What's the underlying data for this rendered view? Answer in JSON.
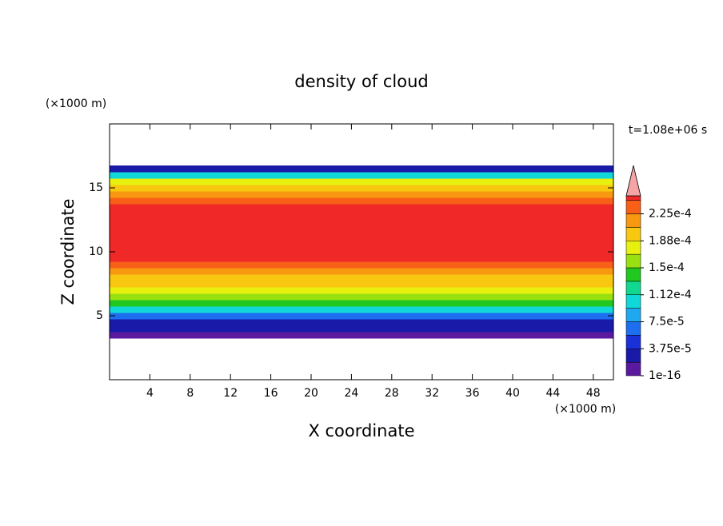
{
  "chart_data": {
    "type": "contour",
    "title": "density of cloud",
    "x_label": "X coordinate",
    "y_label": "Z coordinate",
    "x_units": "(×1000 m)",
    "y_units": "(×1000 m)",
    "time_label": "t=1.08e+06 s",
    "xlim": [
      0,
      50
    ],
    "xticks": [
      4,
      8,
      12,
      16,
      20,
      24,
      28,
      32,
      36,
      40,
      44,
      48
    ],
    "ylim": [
      0,
      20
    ],
    "yticks": [
      5,
      10,
      15
    ],
    "profile": {
      "z": [
        3.5,
        4.0,
        4.5,
        5.0,
        5.5,
        6.0,
        6.5,
        7.0,
        7.5,
        8.0,
        8.5,
        9.0,
        9.5,
        10.0,
        10.5,
        11.0,
        11.5,
        12.0,
        12.5,
        13.0,
        13.5,
        14.0,
        14.5,
        15.0,
        15.5,
        16.0,
        16.5
      ],
      "density": [
        1e-05,
        2e-05,
        3e-05,
        6e-05,
        0.00011,
        0.00014,
        0.00016,
        0.00018,
        0.00019,
        0.0002,
        0.000215,
        0.00023,
        0.000245,
        0.000245,
        0.000245,
        0.000245,
        0.000245,
        0.000245,
        0.000245,
        0.000245,
        0.000245,
        0.00023,
        0.000215,
        0.0002,
        0.00017,
        0.0001,
        2e-05
      ]
    },
    "clim": [
      1e-16,
      0.00025
    ],
    "levels": [
      1e-16,
      1.875e-05,
      3.75e-05,
      5.625e-05,
      7.5e-05,
      9.375e-05,
      0.0001125,
      0.00013125,
      0.00015,
      0.00016875,
      0.0001875,
      0.00020625,
      0.000225,
      0.00024375
    ],
    "colors": [
      "#5a1aa0",
      "#1a1aa8",
      "#1a30d8",
      "#1e6ef0",
      "#1ea8f0",
      "#10d8d8",
      "#10d890",
      "#20c820",
      "#98e010",
      "#e8f010",
      "#f8c810",
      "#f89810",
      "#f86018",
      "#f02828"
    ],
    "extend_color": "#f4a4a4",
    "colorbar_ticks": [
      {
        "value": 1e-16,
        "label": "1e-16"
      },
      {
        "value": 3.75e-05,
        "label": "3.75e-5"
      },
      {
        "value": 7.5e-05,
        "label": "7.5e-5"
      },
      {
        "value": 0.0001125,
        "label": "1.12e-4"
      },
      {
        "value": 0.00015,
        "label": "1.5e-4"
      },
      {
        "value": 0.0001875,
        "label": "1.88e-4"
      },
      {
        "value": 0.000225,
        "label": "2.25e-4"
      }
    ]
  }
}
